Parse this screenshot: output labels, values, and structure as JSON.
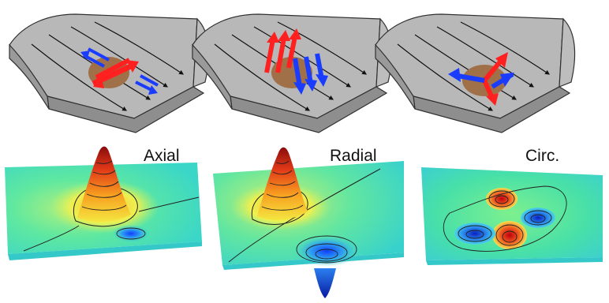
{
  "labels": {
    "axial": "Axial",
    "radial": "Radial",
    "circ": "Circ."
  },
  "colors": {
    "plate_top": "#b9b9b9",
    "plate_side": "#8c8c8c",
    "plate_edge": "#303030",
    "field_line": "#111111",
    "dipole_patch": "#a07048",
    "arrow_red": "#ff2020",
    "arrow_blue": "#1a3cff",
    "surface_base": "#40e0a8",
    "contour_line": "#202020"
  },
  "icons": {
    "plate": "curved-plate",
    "field_arrow": "arrowhead-triangle",
    "current_arrow": "double-arrow"
  }
}
